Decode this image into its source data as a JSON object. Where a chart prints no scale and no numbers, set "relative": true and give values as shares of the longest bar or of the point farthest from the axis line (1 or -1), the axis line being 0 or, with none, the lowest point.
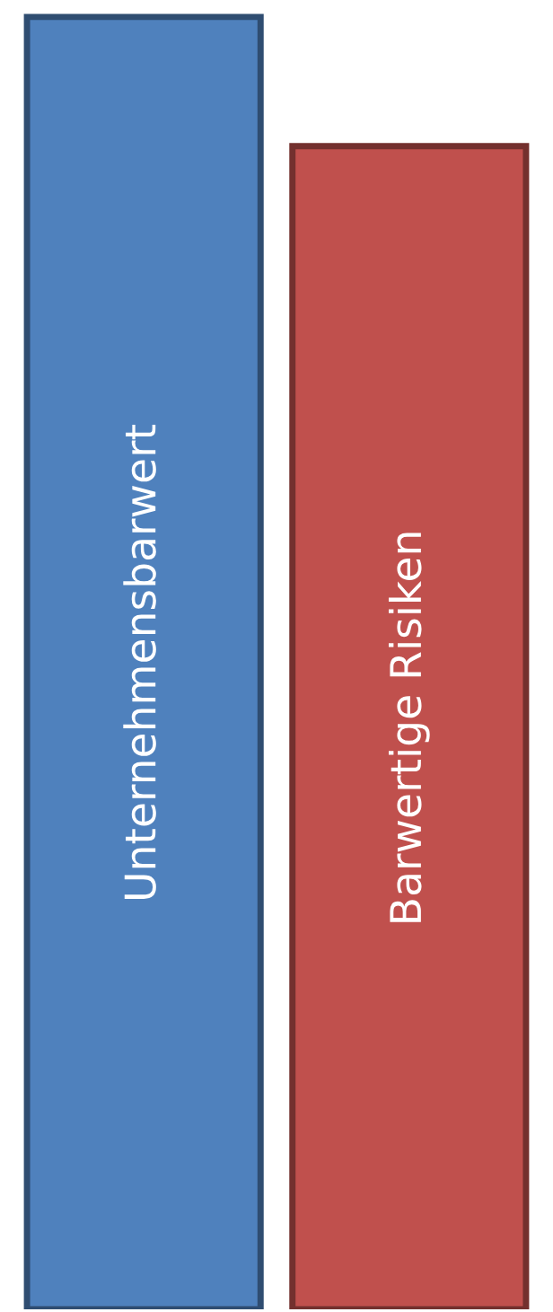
{
  "chart_data": {
    "type": "bar",
    "relative": true,
    "categories": [
      "Unternehmensbarwert",
      "Barwertige Risiken"
    ],
    "values": [
      1,
      0.9
    ],
    "colors": [
      "#4f81bd",
      "#c0504d"
    ]
  }
}
